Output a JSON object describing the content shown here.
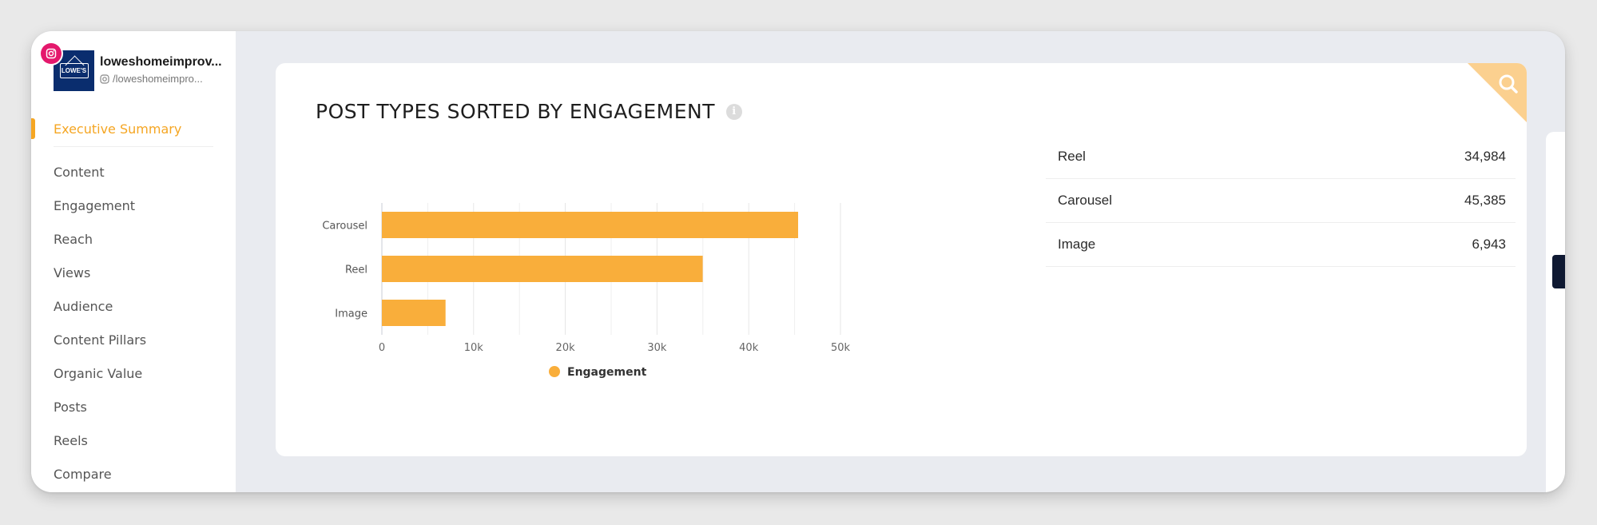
{
  "profile": {
    "name": "loweshomeimprov...",
    "handle": "/loweshomeimpro...",
    "avatar_text": "LOWE'S"
  },
  "sidebar": {
    "active": "Executive Summary",
    "items": [
      {
        "label": "Content"
      },
      {
        "label": "Engagement"
      },
      {
        "label": "Reach"
      },
      {
        "label": "Views"
      },
      {
        "label": "Audience"
      },
      {
        "label": "Content Pillars"
      },
      {
        "label": "Organic Value"
      },
      {
        "label": "Posts"
      },
      {
        "label": "Reels"
      },
      {
        "label": "Compare"
      }
    ]
  },
  "card": {
    "title": "POST TYPES SORTED BY ENGAGEMENT",
    "info_icon": "info-icon",
    "corner_icon": "search-icon"
  },
  "colors": {
    "accent": "#f5a623",
    "bar": "#f9ae3b",
    "collapse_button": "#0f1932",
    "instagram": "#e4186c"
  },
  "chart_data": {
    "type": "bar",
    "orientation": "horizontal",
    "categories": [
      "Carousel",
      "Reel",
      "Image"
    ],
    "series": [
      {
        "name": "Engagement",
        "values": [
          45385,
          34984,
          6943
        ]
      }
    ],
    "xlim": [
      0,
      50000
    ],
    "xticks": [
      "0",
      "10k",
      "20k",
      "30k",
      "40k",
      "50k"
    ],
    "grid": true,
    "legend": "bottom"
  },
  "table": {
    "rows": [
      {
        "label": "Reel",
        "value": "34,984"
      },
      {
        "label": "Carousel",
        "value": "45,385"
      },
      {
        "label": "Image",
        "value": "6,943"
      }
    ]
  },
  "collapse_button": {
    "label": "«"
  }
}
